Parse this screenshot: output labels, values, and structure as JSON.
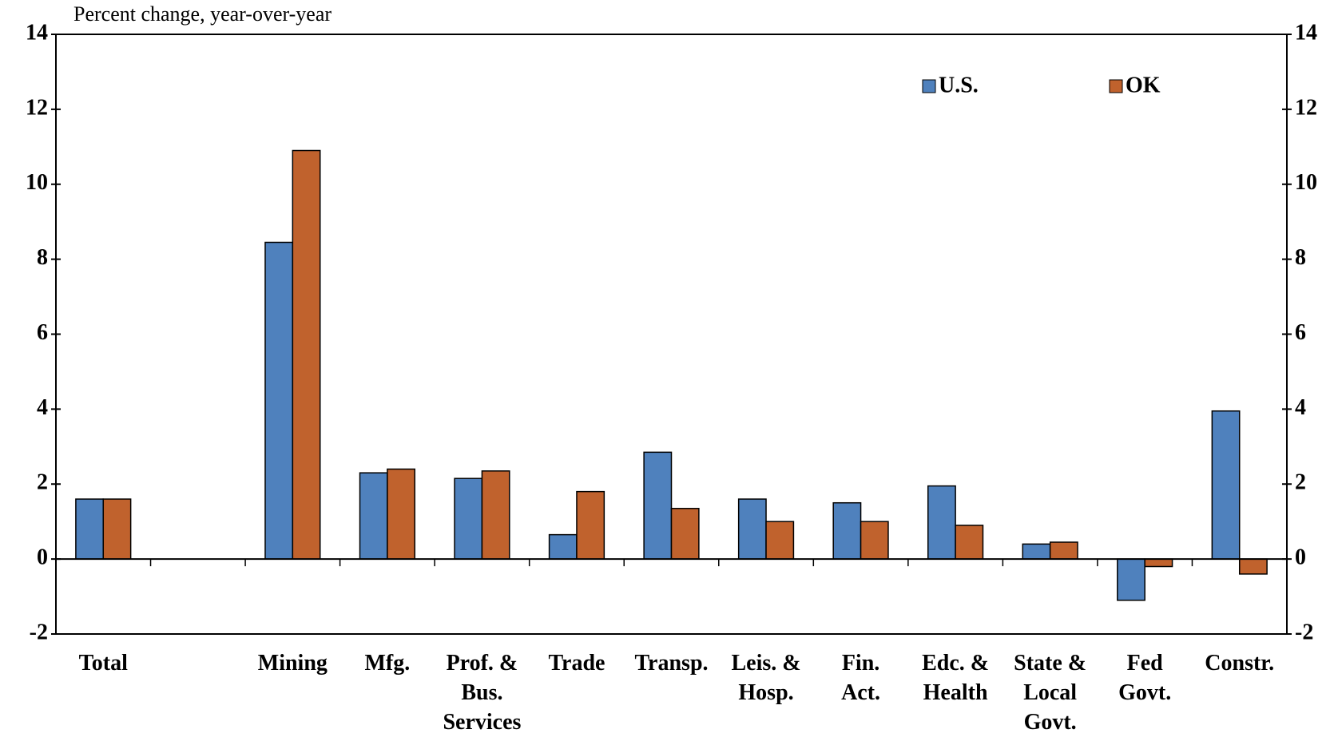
{
  "chart_data": {
    "type": "bar",
    "y_axis_label": "Percent change, year-over-year",
    "categories": [
      "Total",
      null,
      "Mining",
      "Mfg.",
      "Prof. &\nBus.\nServices",
      "Trade",
      "Transp.",
      "Leis. &\nHosp.",
      "Fin.\nAct.",
      "Edc. &\nHealth",
      "State &\nLocal\nGovt.",
      "Fed\nGovt.",
      "Constr."
    ],
    "series": [
      {
        "name": "U.S.",
        "color": "#4f81bd",
        "values": [
          1.6,
          null,
          8.45,
          2.3,
          2.15,
          0.65,
          2.85,
          1.6,
          1.5,
          1.95,
          0.4,
          -1.1,
          3.95
        ]
      },
      {
        "name": "OK",
        "color": "#c0622d",
        "values": [
          1.6,
          null,
          10.9,
          2.4,
          2.35,
          1.8,
          1.35,
          1.0,
          1.0,
          0.9,
          0.45,
          -0.2,
          -0.4
        ]
      }
    ],
    "ylim": [
      -2,
      14
    ],
    "yticks": [
      -2,
      0,
      2,
      4,
      6,
      8,
      10,
      12,
      14
    ],
    "y2lim": [
      -2,
      14
    ],
    "y2ticks": [
      -2,
      0,
      2,
      4,
      6,
      8,
      10,
      12,
      14
    ],
    "legend": "top-right",
    "grid": false
  }
}
